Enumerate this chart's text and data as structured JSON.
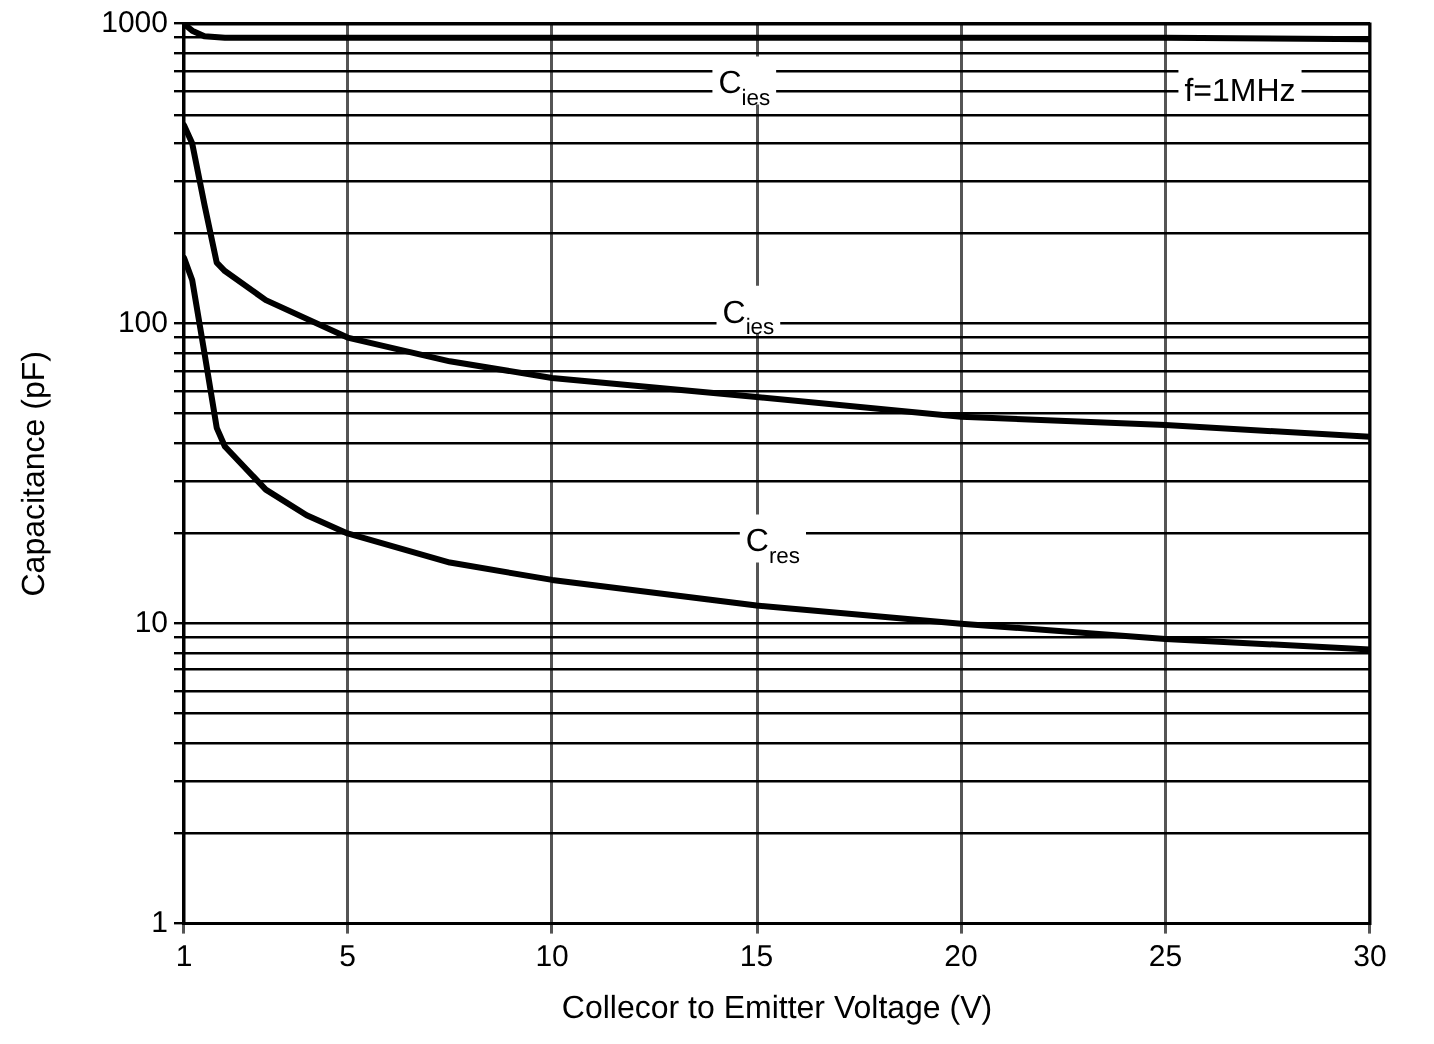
{
  "chart_data": {
    "type": "line",
    "xlabel": "Collecor to Emitter Voltage (V)",
    "ylabel": "Capacitance (pF)",
    "log": "y",
    "grid": true,
    "legend": false,
    "marker": "none",
    "line_style": "solid",
    "xlim": [
      1,
      30
    ],
    "xticks": [
      1,
      5,
      10,
      15,
      20,
      25,
      30
    ],
    "ylim": [
      1,
      1000
    ],
    "yticks": [
      1,
      {
        "value": 2,
        "label": null
      },
      {
        "value": 3,
        "label": null
      },
      {
        "value": 4,
        "label": null
      },
      {
        "value": 5,
        "label": null
      },
      {
        "value": 6,
        "label": null
      },
      {
        "value": 7,
        "label": null
      },
      {
        "value": 8,
        "label": null
      },
      {
        "value": 9,
        "label": null
      },
      10,
      {
        "value": 20,
        "label": null
      },
      {
        "value": 30,
        "label": null
      },
      {
        "value": 40,
        "label": null
      },
      {
        "value": 50,
        "label": null
      },
      {
        "value": 60,
        "label": null
      },
      {
        "value": 70,
        "label": null
      },
      {
        "value": 80,
        "label": null
      },
      {
        "value": 90,
        "label": null
      },
      100,
      {
        "value": 200,
        "label": null
      },
      {
        "value": 300,
        "label": null
      },
      {
        "value": 400,
        "label": null
      },
      {
        "value": 500,
        "label": null
      },
      {
        "value": 600,
        "label": null
      },
      {
        "value": 700,
        "label": null
      },
      {
        "value": 800,
        "label": null
      },
      {
        "value": 900,
        "label": null
      },
      1000
    ],
    "series": [
      {
        "color": "#000000",
        "x": [
          1,
          1.2,
          1.5,
          2,
          5,
          10,
          15,
          20,
          25,
          30
        ],
        "values": [
          1000,
          950,
          910,
          900,
          900,
          900,
          900,
          900,
          900,
          890
        ]
      },
      {
        "color": "#000000",
        "x": [
          1,
          1.2,
          1.5,
          1.8,
          2,
          3,
          5,
          7.5,
          10,
          15,
          20,
          25,
          30
        ],
        "values": [
          460,
          400,
          250,
          160,
          150,
          120,
          90,
          75,
          66,
          57,
          49,
          46,
          42
        ]
      },
      {
        "color": "#000000",
        "x": [
          1,
          1.2,
          1.5,
          1.8,
          2,
          3,
          4,
          5,
          7.5,
          10,
          15,
          20,
          25,
          30
        ],
        "values": [
          166,
          140,
          80,
          45,
          39,
          28,
          23,
          20,
          16,
          14,
          11.5,
          10,
          8.9,
          8.2
        ]
      }
    ],
    "annotations": [
      {
        "text": "C$_{ies}$",
        "x": 14.7,
        "y": 640
      },
      {
        "text": "C$_{ies}$",
        "x": 14.8,
        "y": 110
      },
      {
        "text": "C$_{res}$",
        "x": 15.4,
        "y": 19
      },
      "f=1MHz"
    ]
  }
}
